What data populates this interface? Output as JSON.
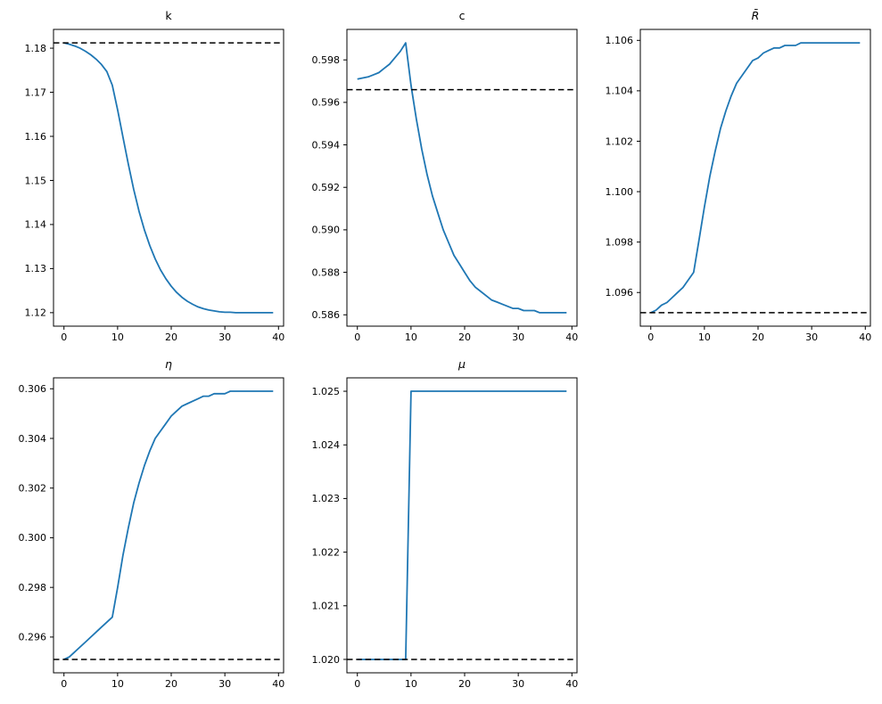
{
  "figure": {
    "background": "#ffffff",
    "line_color": "#1f77b4",
    "dashed_color": "#000000",
    "text_color": "#000000"
  },
  "chart_data": {
    "type": "line",
    "grid": false,
    "legend": null,
    "xlabel": "",
    "ylabel": "",
    "x": [
      0,
      1,
      2,
      3,
      4,
      5,
      6,
      7,
      8,
      9,
      10,
      11,
      12,
      13,
      14,
      15,
      16,
      17,
      18,
      19,
      20,
      21,
      22,
      23,
      24,
      25,
      26,
      27,
      28,
      29,
      30,
      31,
      32,
      33,
      34,
      35,
      36,
      37,
      38,
      39
    ],
    "xlim": [
      -1.95,
      40.95
    ],
    "xticks": {
      "values": [
        0,
        10,
        20,
        30,
        40
      ],
      "labels": [
        "0",
        "10",
        "20",
        "30",
        "40"
      ]
    },
    "subplots": [
      {
        "title": "k",
        "title_style": "normal",
        "dashed_y": 1.1812,
        "values": [
          1.1812,
          1.1809,
          1.1805,
          1.18,
          1.1793,
          1.1785,
          1.1775,
          1.1763,
          1.1747,
          1.1716,
          1.166,
          1.1598,
          1.1537,
          1.148,
          1.143,
          1.1388,
          1.1352,
          1.1322,
          1.1297,
          1.1277,
          1.126,
          1.1246,
          1.1235,
          1.1226,
          1.1219,
          1.1213,
          1.1209,
          1.1206,
          1.1204,
          1.1202,
          1.1201,
          1.1201,
          1.12,
          1.12,
          1.12,
          1.12,
          1.12,
          1.12,
          1.12,
          1.12
        ],
        "yticks": {
          "values": [
            1.12,
            1.13,
            1.14,
            1.15,
            1.16,
            1.17,
            1.18
          ],
          "labels": [
            "1.12",
            "1.13",
            "1.14",
            "1.15",
            "1.16",
            "1.17",
            "1.18"
          ]
        }
      },
      {
        "title": "c",
        "title_style": "normal",
        "dashed_y": 0.5966,
        "values": [
          0.5971,
          0.59715,
          0.5972,
          0.5973,
          0.5974,
          0.5976,
          0.5978,
          0.5981,
          0.5984,
          0.5988,
          0.5968,
          0.5952,
          0.5938,
          0.5926,
          0.5916,
          0.5908,
          0.59,
          0.5894,
          0.5888,
          0.5884,
          0.588,
          0.5876,
          0.5873,
          0.5871,
          0.5869,
          0.5867,
          0.5866,
          0.5865,
          0.5864,
          0.5863,
          0.5863,
          0.5862,
          0.5862,
          0.5862,
          0.5861,
          0.5861,
          0.5861,
          0.5861,
          0.5861,
          0.5861
        ],
        "yticks": {
          "values": [
            0.586,
            0.588,
            0.59,
            0.592,
            0.594,
            0.596,
            0.598
          ],
          "labels": [
            "0.586",
            "0.588",
            "0.590",
            "0.592",
            "0.594",
            "0.596",
            "0.598"
          ]
        }
      },
      {
        "title": "R̄",
        "title_style": "italic",
        "dashed_y": 1.0952,
        "values": [
          1.0952,
          1.0953,
          1.0955,
          1.0956,
          1.0958,
          1.096,
          1.0962,
          1.0965,
          1.0968,
          1.0981,
          1.0994,
          1.1006,
          1.1016,
          1.1025,
          1.1032,
          1.1038,
          1.1043,
          1.1046,
          1.1049,
          1.1052,
          1.1053,
          1.1055,
          1.1056,
          1.1057,
          1.1057,
          1.1058,
          1.1058,
          1.1058,
          1.1059,
          1.1059,
          1.1059,
          1.1059,
          1.1059,
          1.1059,
          1.1059,
          1.1059,
          1.1059,
          1.1059,
          1.1059,
          1.1059
        ],
        "yticks": {
          "values": [
            1.096,
            1.098,
            1.1,
            1.102,
            1.104,
            1.106
          ],
          "labels": [
            "1.096",
            "1.098",
            "1.100",
            "1.102",
            "1.104",
            "1.106"
          ]
        }
      },
      {
        "title": "η",
        "title_style": "italic",
        "dashed_y": 0.2951,
        "values": [
          0.2951,
          0.2952,
          0.2954,
          0.2956,
          0.2958,
          0.296,
          0.2962,
          0.2964,
          0.2966,
          0.2968,
          0.298,
          0.2993,
          0.3004,
          0.3014,
          0.3022,
          0.3029,
          0.3035,
          0.304,
          0.3043,
          0.3046,
          0.3049,
          0.3051,
          0.3053,
          0.3054,
          0.3055,
          0.3056,
          0.3057,
          0.3057,
          0.3058,
          0.3058,
          0.3058,
          0.3059,
          0.3059,
          0.3059,
          0.3059,
          0.3059,
          0.3059,
          0.3059,
          0.3059,
          0.3059
        ],
        "yticks": {
          "values": [
            0.296,
            0.298,
            0.3,
            0.302,
            0.304,
            0.306
          ],
          "labels": [
            "0.296",
            "0.298",
            "0.300",
            "0.302",
            "0.304",
            "0.306"
          ]
        }
      },
      {
        "title": "μ",
        "title_style": "italic",
        "dashed_y": 1.02,
        "values": [
          1.02,
          1.02,
          1.02,
          1.02,
          1.02,
          1.02,
          1.02,
          1.02,
          1.02,
          1.02,
          1.025,
          1.025,
          1.025,
          1.025,
          1.025,
          1.025,
          1.025,
          1.025,
          1.025,
          1.025,
          1.025,
          1.025,
          1.025,
          1.025,
          1.025,
          1.025,
          1.025,
          1.025,
          1.025,
          1.025,
          1.025,
          1.025,
          1.025,
          1.025,
          1.025,
          1.025,
          1.025,
          1.025,
          1.025,
          1.025
        ],
        "yticks": {
          "values": [
            1.02,
            1.021,
            1.022,
            1.023,
            1.024,
            1.025
          ],
          "labels": [
            "1.020",
            "1.021",
            "1.022",
            "1.023",
            "1.024",
            "1.025"
          ]
        }
      }
    ]
  }
}
